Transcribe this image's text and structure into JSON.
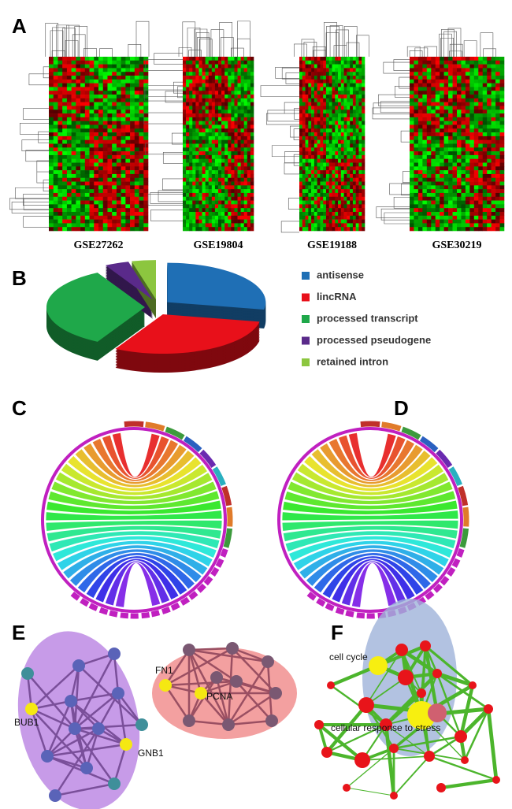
{
  "panels": [
    "A",
    "B",
    "C",
    "D",
    "E",
    "F"
  ],
  "heatmaps": [
    "GSE27262",
    "GSE19804",
    "GSE19188",
    "GSE30219"
  ],
  "chart_data": {
    "type": "pie",
    "categories": [
      "antisense",
      "lincRNA",
      "processed transcript",
      "processed pseudogene",
      "retained intron"
    ],
    "values": [
      28,
      30,
      34,
      4,
      4
    ],
    "colors": [
      "#1f6fb5",
      "#e8101a",
      "#1fa84a",
      "#5a2a8a",
      "#8cc63f"
    ]
  },
  "panel_e": {
    "labels": [
      "BUB1",
      "GNB1",
      "FN1",
      "PCNA"
    ]
  },
  "panel_f": {
    "labels": [
      "cell cycle",
      "cellular response to stress"
    ]
  }
}
